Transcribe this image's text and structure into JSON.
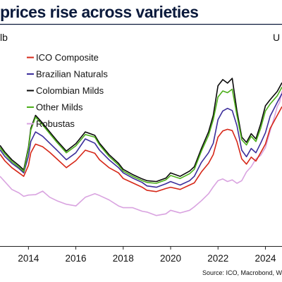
{
  "chart_data": {
    "type": "line",
    "title": "prices rise across varieties",
    "ylabel_left": "lb",
    "ylabel_right": "U",
    "source": "Source: ICO, Macrobond, W",
    "xlim": [
      2012.8,
      2024.7
    ],
    "ylim": [
      0,
      500
    ],
    "x_ticks": [
      2014,
      2016,
      2018,
      2020,
      2022,
      2024
    ],
    "x_tick_labels": [
      "2014",
      "2016",
      "2018",
      "2020",
      "2022",
      "2024"
    ],
    "legend_position": "top-left",
    "series": [
      {
        "name": "ICO Composite",
        "color": "#d62718",
        "x": [
          2012.8,
          2013.0,
          2013.3,
          2013.6,
          2013.8,
          2014.0,
          2014.1,
          2014.3,
          2014.6,
          2014.9,
          2015.2,
          2015.6,
          2016.0,
          2016.4,
          2016.8,
          2017.0,
          2017.4,
          2017.8,
          2018.0,
          2018.4,
          2018.8,
          2019.0,
          2019.4,
          2019.8,
          2020.0,
          2020.4,
          2020.8,
          2021.0,
          2021.3,
          2021.6,
          2021.8,
          2022.0,
          2022.2,
          2022.4,
          2022.6,
          2022.8,
          2023.0,
          2023.2,
          2023.4,
          2023.6,
          2023.8,
          2024.0,
          2024.2,
          2024.5,
          2024.7
        ],
        "y": [
          211,
          196,
          180,
          168,
          160,
          185,
          214,
          234,
          228,
          215,
          200,
          180,
          196,
          220,
          213,
          198,
          180,
          168,
          155,
          145,
          135,
          128,
          125,
          132,
          135,
          130,
          140,
          145,
          170,
          190,
          210,
          250,
          264,
          268,
          265,
          240,
          200,
          188,
          204,
          195,
          214,
          234,
          270,
          300,
          320
        ]
      },
      {
        "name": "Brazilian Naturals",
        "color": "#3b2d9b",
        "x": [
          2012.8,
          2013.0,
          2013.3,
          2013.6,
          2013.8,
          2014.0,
          2014.1,
          2014.3,
          2014.6,
          2014.9,
          2015.2,
          2015.6,
          2016.0,
          2016.4,
          2016.8,
          2017.0,
          2017.4,
          2017.8,
          2018.0,
          2018.4,
          2018.8,
          2019.0,
          2019.4,
          2019.8,
          2020.0,
          2020.4,
          2020.8,
          2021.0,
          2021.3,
          2021.6,
          2021.8,
          2022.0,
          2022.2,
          2022.4,
          2022.6,
          2022.8,
          2023.0,
          2023.2,
          2023.4,
          2023.6,
          2023.8,
          2024.0,
          2024.2,
          2024.5,
          2024.7
        ],
        "y": [
          221,
          206,
          190,
          178,
          168,
          206,
          240,
          262,
          252,
          236,
          220,
          198,
          214,
          246,
          236,
          220,
          198,
          180,
          168,
          156,
          146,
          138,
          135,
          143,
          148,
          140,
          150,
          160,
          192,
          214,
          236,
          290,
          310,
          316,
          311,
          276,
          220,
          205,
          224,
          214,
          236,
          260,
          298,
          330,
          350
        ]
      },
      {
        "name": "Colombian Milds",
        "color": "#0a0a0a",
        "x": [
          2012.8,
          2013.0,
          2013.3,
          2013.6,
          2013.8,
          2014.0,
          2014.1,
          2014.3,
          2014.6,
          2014.9,
          2015.2,
          2015.6,
          2016.0,
          2016.4,
          2016.8,
          2017.0,
          2017.4,
          2017.8,
          2018.0,
          2018.4,
          2018.8,
          2019.0,
          2019.4,
          2019.8,
          2020.0,
          2020.4,
          2020.8,
          2021.0,
          2021.3,
          2021.6,
          2021.8,
          2022.0,
          2022.2,
          2022.4,
          2022.6,
          2022.8,
          2023.0,
          2023.2,
          2023.4,
          2023.6,
          2023.8,
          2024.0,
          2024.2,
          2024.5,
          2024.7
        ],
        "y": [
          231,
          216,
          198,
          185,
          175,
          226,
          270,
          300,
          282,
          262,
          242,
          218,
          235,
          262,
          254,
          236,
          210,
          190,
          176,
          164,
          154,
          150,
          148,
          156,
          168,
          160,
          172,
          182,
          224,
          262,
          300,
          368,
          382,
          374,
          385,
          310,
          250,
          238,
          258,
          246,
          280,
          322,
          336,
          355,
          375
        ]
      },
      {
        "name": "Other Milds",
        "color": "#4caf1a",
        "x": [
          2012.8,
          2013.0,
          2013.3,
          2013.6,
          2013.8,
          2014.0,
          2014.1,
          2014.3,
          2014.6,
          2014.9,
          2015.2,
          2015.6,
          2016.0,
          2016.4,
          2016.8,
          2017.0,
          2017.4,
          2017.8,
          2018.0,
          2018.4,
          2018.8,
          2019.0,
          2019.4,
          2019.8,
          2020.0,
          2020.4,
          2020.8,
          2021.0,
          2021.3,
          2021.6,
          2021.8,
          2022.0,
          2022.2,
          2022.4,
          2022.6,
          2022.8,
          2023.0,
          2023.2,
          2023.4,
          2023.6,
          2023.8,
          2024.0,
          2024.2,
          2024.5,
          2024.7
        ],
        "y": [
          226,
          212,
          194,
          181,
          171,
          222,
          266,
          296,
          278,
          258,
          238,
          214,
          230,
          256,
          250,
          232,
          206,
          186,
          172,
          160,
          150,
          146,
          144,
          152,
          162,
          155,
          166,
          176,
          218,
          254,
          290,
          342,
          356,
          352,
          360,
          300,
          244,
          232,
          252,
          240,
          270,
          310,
          326,
          345,
          365
        ]
      },
      {
        "name": "Robustas",
        "color": "#d9a3e0",
        "x": [
          2012.8,
          2013.0,
          2013.3,
          2013.6,
          2013.8,
          2014.0,
          2014.3,
          2014.6,
          2014.9,
          2015.2,
          2015.6,
          2016.0,
          2016.4,
          2016.8,
          2017.0,
          2017.4,
          2017.8,
          2018.0,
          2018.4,
          2018.8,
          2019.0,
          2019.4,
          2019.8,
          2020.0,
          2020.4,
          2020.8,
          2021.0,
          2021.3,
          2021.6,
          2021.8,
          2022.0,
          2022.2,
          2022.4,
          2022.6,
          2022.8,
          2023.0,
          2023.2,
          2023.4,
          2023.6,
          2023.8,
          2024.0,
          2024.2,
          2024.4,
          2024.5,
          2024.6,
          2024.7
        ],
        "y": [
          160,
          148,
          130,
          122,
          114,
          117,
          118,
          126,
          112,
          104,
          96,
          92,
          112,
          120,
          116,
          106,
          92,
          88,
          88,
          80,
          78,
          70,
          74,
          82,
          76,
          82,
          90,
          104,
          120,
          136,
          150,
          154,
          148,
          152,
          144,
          150,
          170,
          182,
          200,
          208,
          226,
          264,
          300,
          320,
          330,
          355
        ]
      }
    ]
  }
}
